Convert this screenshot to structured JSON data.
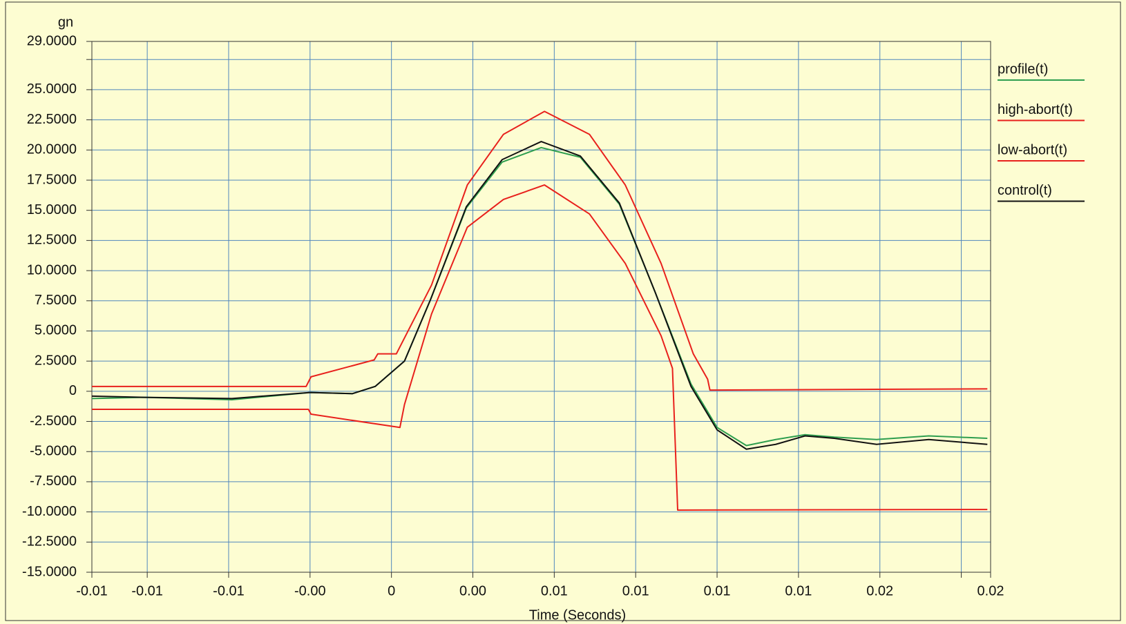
{
  "chart_data": {
    "type": "line",
    "y_label": "gn",
    "x_label": "Time (Seconds)",
    "xlim": [
      -0.0092,
      0.0184
    ],
    "ylim": [
      -15,
      29
    ],
    "xticks": [
      {
        "value": -0.0092,
        "label": "-0.01"
      },
      {
        "value": -0.0075,
        "label": "-0.01"
      },
      {
        "value": -0.005,
        "label": "-0.01"
      },
      {
        "value": -0.0025,
        "label": "-0.00"
      },
      0,
      {
        "value": 0.0025,
        "label": "0.00"
      },
      {
        "value": 0.005,
        "label": "0.01"
      },
      {
        "value": 0.0075,
        "label": "0.01"
      },
      {
        "value": 0.01,
        "label": "0.01"
      },
      {
        "value": 0.0125,
        "label": "0.01"
      },
      {
        "value": 0.015,
        "label": "0.02"
      },
      {
        "value": 0.0175,
        "label": null
      },
      {
        "value": 0.0184,
        "label": "0.02"
      }
    ],
    "yticks": [
      {
        "value": 29,
        "label": "29.0000"
      },
      {
        "value": 27.5,
        "label": null
      },
      {
        "value": 25,
        "label": "25.0000"
      },
      {
        "value": 22.5,
        "label": "22.5000"
      },
      {
        "value": 20,
        "label": "20.0000"
      },
      {
        "value": 17.5,
        "label": "17.5000"
      },
      {
        "value": 15,
        "label": "15.0000"
      },
      {
        "value": 12.5,
        "label": "12.5000"
      },
      {
        "value": 10,
        "label": "10.0000"
      },
      {
        "value": 7.5,
        "label": "7.5000"
      },
      {
        "value": 5,
        "label": "5.0000"
      },
      {
        "value": 2.5,
        "label": "2.5000"
      },
      0,
      {
        "value": -2.5,
        "label": "-2.5000"
      },
      {
        "value": -5,
        "label": "-5.0000"
      },
      {
        "value": -7.5,
        "label": "-7.5000"
      },
      {
        "value": -10,
        "label": "-10.0000"
      },
      {
        "value": -12.5,
        "label": "-12.5000"
      },
      {
        "value": -15,
        "label": "-15.0000"
      }
    ],
    "grid": true,
    "legend": "right",
    "series": [
      {
        "name": "profile(t)",
        "color": "#2e9e4f",
        "x": [
          -0.0092,
          -0.0076,
          -0.0049,
          -0.0025,
          -0.0012,
          -0.0005,
          0.0004,
          0.0012,
          0.0023,
          0.0034,
          0.0046,
          0.0058,
          0.007,
          0.0081,
          0.0092,
          0.01,
          0.0109,
          0.0118,
          0.0127,
          0.0136,
          0.0149,
          0.0165,
          0.0183
        ],
        "values": [
          -0.6,
          -0.5,
          -0.7,
          -0.1,
          -0.2,
          0.4,
          2.5,
          7.6,
          15.2,
          19.0,
          20.2,
          19.4,
          15.5,
          8.2,
          0.6,
          -3.0,
          -4.5,
          -4.0,
          -3.6,
          -3.8,
          -4.0,
          -3.7,
          -3.9
        ]
      },
      {
        "name": "high-abort(t)",
        "color": "#e8201c",
        "x": [
          -0.0092,
          -0.00262,
          -0.00247,
          -0.00053,
          -0.00042,
          0.00015,
          0.00123,
          0.00233,
          0.00344,
          0.0047,
          0.00608,
          0.00718,
          0.00828,
          0.00927,
          0.00971,
          0.00978,
          0.0183
        ],
        "values": [
          0.4,
          0.4,
          1.2,
          2.6,
          3.1,
          3.1,
          8.8,
          17.1,
          21.3,
          23.2,
          21.3,
          17.1,
          10.6,
          3.1,
          1.0,
          0.1,
          0.2
        ]
      },
      {
        "name": "low-abort(t)",
        "color": "#e8201c",
        "x": [
          -0.0092,
          -0.00255,
          -0.00247,
          0.00026,
          0.0004,
          0.00123,
          0.00233,
          0.00344,
          0.0047,
          0.00608,
          0.00718,
          0.00828,
          0.00863,
          0.00879,
          0.0183
        ],
        "values": [
          -1.5,
          -1.5,
          -1.9,
          -3.0,
          -1.1,
          6.4,
          13.6,
          15.9,
          17.1,
          14.7,
          10.6,
          4.6,
          1.9,
          -9.85,
          -9.8
        ]
      },
      {
        "name": "control(t)",
        "color": "#111111",
        "x": [
          -0.0092,
          -0.0076,
          -0.0049,
          -0.0025,
          -0.0012,
          -0.0005,
          0.0004,
          0.0012,
          0.0023,
          0.0034,
          0.0046,
          0.0058,
          0.007,
          0.0081,
          0.0092,
          0.01,
          0.0109,
          0.0118,
          0.0127,
          0.0136,
          0.0149,
          0.0165,
          0.0183
        ],
        "values": [
          -0.4,
          -0.5,
          -0.6,
          -0.1,
          -0.2,
          0.4,
          2.5,
          7.6,
          15.3,
          19.2,
          20.7,
          19.5,
          15.6,
          8.2,
          0.4,
          -3.2,
          -4.8,
          -4.4,
          -3.7,
          -3.9,
          -4.4,
          -4.0,
          -4.4
        ]
      }
    ]
  }
}
